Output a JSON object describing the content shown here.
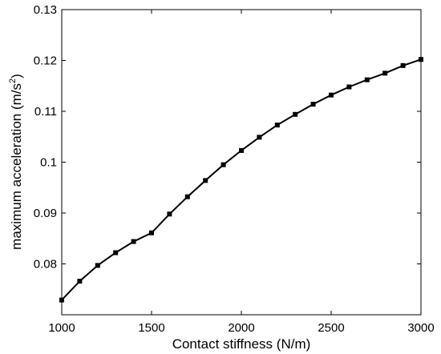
{
  "chart_data": {
    "type": "line",
    "title": "",
    "xlabel": "Contact stiffness (N/m)",
    "ylabel": {
      "main": "maximum acceleration (m/s",
      "sup": "2",
      "close": ")"
    },
    "xlim": [
      1000,
      3000
    ],
    "ylim": [
      0.07,
      0.13
    ],
    "xticks": [
      1000,
      1500,
      2000,
      2500,
      3000
    ],
    "yticks": [
      0.08,
      0.09,
      0.1,
      0.11,
      0.12,
      0.13
    ],
    "ytick_labels": [
      "0.08",
      "0.09",
      "0.1",
      "0.11",
      "0.12",
      "0.13"
    ],
    "grid": false,
    "legend": "none",
    "series": [
      {
        "color": "#000000",
        "marker": "square",
        "x": [
          1000,
          1100,
          1200,
          1300,
          1400,
          1500,
          1600,
          1700,
          1800,
          1900,
          2000,
          2100,
          2200,
          2300,
          2400,
          2500,
          2600,
          2700,
          2800,
          2900,
          3000
        ],
        "y": [
          0.0729,
          0.0766,
          0.0797,
          0.0822,
          0.0844,
          0.0861,
          0.0898,
          0.0932,
          0.0964,
          0.0995,
          0.1023,
          0.1049,
          0.1073,
          0.1094,
          0.1114,
          0.1132,
          0.1148,
          0.1162,
          0.1175,
          0.119,
          0.1202
        ]
      }
    ]
  }
}
